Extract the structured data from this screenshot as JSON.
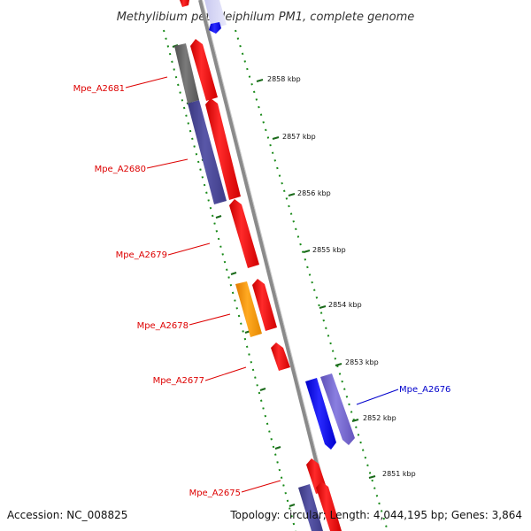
{
  "title": "Methylibium petroleiphilum PM1, complete genome",
  "footer": {
    "accession": "Accession: NC_008825",
    "summary": "Topology: circular; Length: 4,044,195 bp; Genes: 3,864"
  },
  "ruler_labels": [
    "2858 kbp",
    "2857 kbp",
    "2856 kbp",
    "2855 kbp",
    "2854 kbp",
    "2853 kbp",
    "2852 kbp",
    "2851 kbp"
  ],
  "colors": {
    "reverse_strand_label": "#dd0000",
    "forward_strand_label": "#0000cc",
    "red_gene": "#ff0000",
    "purple_gene": "#4a4899",
    "grey_gene": "#666666",
    "orange_gene": "#ff9900",
    "blue_gene": "#0000ee",
    "violet_gene": "#7766cc",
    "backbone": "#888888",
    "ruler": "#1a7a1a"
  },
  "gene_labels": [
    {
      "name": "Mpe_A2681",
      "strand": "reverse"
    },
    {
      "name": "Mpe_A2680",
      "strand": "reverse"
    },
    {
      "name": "Mpe_A2679",
      "strand": "reverse"
    },
    {
      "name": "Mpe_A2678",
      "strand": "reverse"
    },
    {
      "name": "Mpe_A2677",
      "strand": "reverse"
    },
    {
      "name": "Mpe_A2676",
      "strand": "forward"
    },
    {
      "name": "Mpe_A2675",
      "strand": "reverse"
    }
  ]
}
